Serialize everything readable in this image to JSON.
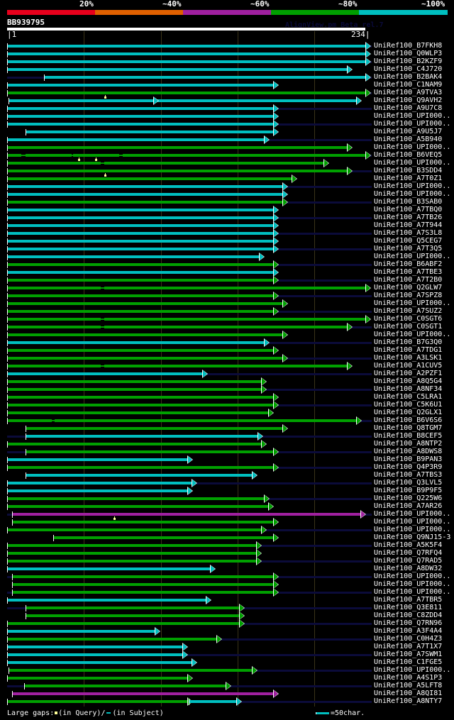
{
  "legend": {
    "labels": [
      "20%",
      "~40%",
      "~60%",
      "~80%",
      "~100%"
    ],
    "colors": [
      "#e8001c",
      "#e06000",
      "#a020a0",
      "#00a000",
      "#00bfc0"
    ]
  },
  "query": {
    "name": "BB939795",
    "start": 1,
    "end": 234,
    "watermark": "AlignView.pm Beta rel.7"
  },
  "colors": {
    "cyan": "#00bfc0",
    "green": "#00a000",
    "magenta": "#a020a0",
    "tail": "#0b0b3a",
    "background": "#000000",
    "grid": "#3a3318"
  },
  "grid_positions": [
    1,
    51,
    101,
    151,
    201,
    234
  ],
  "rows": [
    {
      "label": "UniRef100_B7FKH8",
      "color": "cyan",
      "start": 1,
      "end": 234,
      "tail": true
    },
    {
      "label": "UniRef100_Q0WLP3",
      "color": "cyan",
      "start": 1,
      "end": 234,
      "tail": false
    },
    {
      "label": "UniRef100_B2KZF9",
      "color": "cyan",
      "start": 1,
      "end": 234,
      "tail": true
    },
    {
      "label": "UniRef100_C4J720",
      "color": "cyan",
      "start": 1,
      "end": 222,
      "tail": false
    },
    {
      "label": "UniRef100_B2BAK4",
      "color": "cyan",
      "start": 25,
      "end": 234,
      "tail": true,
      "pre_tail": true
    },
    {
      "label": "UniRef100_C1NAM9",
      "color": "cyan",
      "start": 1,
      "end": 174,
      "tail": false
    },
    {
      "label": "UniRef100_A9TVA3",
      "color": "green",
      "start": 1,
      "end": 234,
      "tail": true,
      "qgaps": [
        64
      ]
    },
    {
      "label": "UniRef100_Q9AVH2",
      "color": "cyan",
      "start": 2,
      "end": 228,
      "tail": false,
      "mid_mark": 96
    },
    {
      "label": "UniRef100_A9U7C8",
      "color": "cyan",
      "start": 1,
      "end": 174,
      "tail": true
    },
    {
      "label": "UniRef100_UPI000..",
      "color": "cyan",
      "start": 1,
      "end": 174,
      "tail": false
    },
    {
      "label": "UniRef100_UPI000..",
      "color": "cyan",
      "start": 1,
      "end": 174,
      "tail": true
    },
    {
      "label": "UniRef100_A9U5J7",
      "color": "cyan",
      "start": 13,
      "end": 174,
      "tail": false
    },
    {
      "label": "UniRef100_A5B940",
      "color": "cyan",
      "start": 1,
      "end": 168,
      "tail": true
    },
    {
      "label": "UniRef100_UPI000..",
      "color": "green",
      "start": 1,
      "end": 222,
      "tail": false
    },
    {
      "label": "UniRef100_B6VEQ5",
      "color": "green",
      "start": 1,
      "end": 234,
      "tail": true,
      "sgaps": [
        [
          10,
          13
        ],
        [
          43,
          44
        ],
        [
          74,
          76
        ]
      ],
      "qgaps": [
        47,
        58
      ]
    },
    {
      "label": "UniRef100_UPI000..",
      "color": "green",
      "start": 1,
      "end": 207,
      "tail": false,
      "sgaps": [
        [
          62,
          64
        ]
      ]
    },
    {
      "label": "UniRef100_B3SDD4",
      "color": "green",
      "start": 1,
      "end": 222,
      "tail": true,
      "qgaps": [
        64
      ]
    },
    {
      "label": "UniRef100_A7T0Z1",
      "color": "green",
      "start": 1,
      "end": 186,
      "tail": false
    },
    {
      "label": "UniRef100_UPI000..",
      "color": "cyan",
      "start": 1,
      "end": 180,
      "tail": true
    },
    {
      "label": "UniRef100_UPI000..",
      "color": "cyan",
      "start": 1,
      "end": 180,
      "tail": false
    },
    {
      "label": "UniRef100_B3SAB0",
      "color": "green",
      "start": 1,
      "end": 180,
      "tail": true
    },
    {
      "label": "UniRef100_A7TBQ0",
      "color": "cyan",
      "start": 1,
      "end": 174,
      "tail": false
    },
    {
      "label": "UniRef100_A7TB26",
      "color": "cyan",
      "start": 1,
      "end": 174,
      "tail": true
    },
    {
      "label": "UniRef100_A7T944",
      "color": "cyan",
      "start": 1,
      "end": 174,
      "tail": false
    },
    {
      "label": "UniRef100_A7S3L8",
      "color": "cyan",
      "start": 1,
      "end": 174,
      "tail": true
    },
    {
      "label": "UniRef100_Q5CEG7",
      "color": "cyan",
      "start": 1,
      "end": 174,
      "tail": false
    },
    {
      "label": "UniRef100_A7T3Q5",
      "color": "cyan",
      "start": 1,
      "end": 174,
      "tail": true
    },
    {
      "label": "UniRef100_UPI000..",
      "color": "cyan",
      "start": 1,
      "end": 165,
      "tail": false
    },
    {
      "label": "UniRef100_B6ABF2",
      "color": "green",
      "start": 1,
      "end": 174,
      "tail": true
    },
    {
      "label": "UniRef100_A7TBE3",
      "color": "cyan",
      "start": 1,
      "end": 174,
      "tail": false
    },
    {
      "label": "UniRef100_A7T2B0",
      "color": "green",
      "start": 1,
      "end": 174,
      "tail": true
    },
    {
      "label": "UniRef100_Q2GLW7",
      "color": "green",
      "start": 1,
      "end": 234,
      "tail": false,
      "sgaps": [
        [
          62,
          64
        ]
      ]
    },
    {
      "label": "UniRef100_A7SPZ8",
      "color": "green",
      "start": 1,
      "end": 174,
      "tail": true
    },
    {
      "label": "UniRef100_UPI000..",
      "color": "green",
      "start": 1,
      "end": 180,
      "tail": false
    },
    {
      "label": "UniRef100_A7SUZ2",
      "color": "green",
      "start": 1,
      "end": 174,
      "tail": true
    },
    {
      "label": "UniRef100_C0SGT6",
      "color": "green",
      "start": 1,
      "end": 234,
      "tail": false,
      "sgaps": [
        [
          62,
          64
        ]
      ]
    },
    {
      "label": "UniRef100_C0SGT1",
      "color": "green",
      "start": 1,
      "end": 222,
      "tail": true,
      "sgaps": [
        [
          62,
          64
        ]
      ]
    },
    {
      "label": "UniRef100_UPI000..",
      "color": "green",
      "start": 1,
      "end": 180,
      "tail": false
    },
    {
      "label": "UniRef100_B7G3Q0",
      "color": "cyan",
      "start": 1,
      "end": 168,
      "tail": true
    },
    {
      "label": "UniRef100_A7TDG1",
      "color": "green",
      "start": 1,
      "end": 174,
      "tail": false
    },
    {
      "label": "UniRef100_A3LSK1",
      "color": "green",
      "start": 1,
      "end": 180,
      "tail": true
    },
    {
      "label": "UniRef100_A1CUV5",
      "color": "green",
      "start": 1,
      "end": 222,
      "tail": false,
      "sgaps": [
        [
          62,
          64
        ]
      ]
    },
    {
      "label": "UniRef100_A2PZF1",
      "color": "cyan",
      "start": 1,
      "end": 128,
      "tail": true
    },
    {
      "label": "UniRef100_A8Q5G4",
      "color": "green",
      "start": 1,
      "end": 166,
      "tail": false
    },
    {
      "label": "UniRef100_A8NF34",
      "color": "green",
      "start": 1,
      "end": 166,
      "tail": true
    },
    {
      "label": "UniRef100_C5LRA1",
      "color": "green",
      "start": 1,
      "end": 174,
      "tail": false
    },
    {
      "label": "UniRef100_C5K6U1",
      "color": "green",
      "start": 1,
      "end": 174,
      "tail": true
    },
    {
      "label": "UniRef100_Q2GLX1",
      "color": "green",
      "start": 1,
      "end": 171,
      "tail": false
    },
    {
      "label": "UniRef100_B6V6S6",
      "color": "green",
      "start": 1,
      "end": 228,
      "tail": true,
      "sgaps": [
        [
          30,
          32
        ]
      ]
    },
    {
      "label": "UniRef100_Q8TGM7",
      "color": "green",
      "start": 13,
      "end": 180,
      "tail": false
    },
    {
      "label": "UniRef100_B8CEF5",
      "color": "cyan",
      "start": 13,
      "end": 164,
      "tail": true,
      "pre_tail": true
    },
    {
      "label": "UniRef100_A8NTP2",
      "color": "green",
      "start": 1,
      "end": 166,
      "tail": false
    },
    {
      "label": "UniRef100_A8DWS8",
      "color": "green",
      "start": 13,
      "end": 174,
      "tail": true,
      "pre_tail": true
    },
    {
      "label": "UniRef100_B9PAN3",
      "color": "cyan",
      "start": 1,
      "end": 118,
      "tail": false
    },
    {
      "label": "UniRef100_Q4P3R9",
      "color": "green",
      "start": 1,
      "end": 174,
      "tail": true
    },
    {
      "label": "UniRef100_A7TBS3",
      "color": "cyan",
      "start": 13,
      "end": 160,
      "tail": false
    },
    {
      "label": "UniRef100_Q3LVL5",
      "color": "cyan",
      "start": 1,
      "end": 121,
      "tail": true
    },
    {
      "label": "UniRef100_B9P9F5",
      "color": "cyan",
      "start": 1,
      "end": 118,
      "tail": false
    },
    {
      "label": "UniRef100_Q225W6",
      "color": "green",
      "start": 1,
      "end": 168,
      "tail": true
    },
    {
      "label": "UniRef100_A7AR26",
      "color": "green",
      "start": 1,
      "end": 171,
      "tail": false
    },
    {
      "label": "UniRef100_UPI000..",
      "color": "magenta",
      "start": 4,
      "end": 231,
      "tail": true,
      "pre_tail": true,
      "qgaps": [
        70
      ]
    },
    {
      "label": "UniRef100_UPI000..",
      "color": "green",
      "start": 4,
      "end": 174,
      "tail": false
    },
    {
      "label": "UniRef100_UPI000..",
      "color": "green",
      "start": 1,
      "end": 166,
      "tail": true
    },
    {
      "label": "UniRef100_Q9NJ15-3",
      "color": "green",
      "start": 31,
      "end": 174,
      "tail": false
    },
    {
      "label": "UniRef100_A5K5F4",
      "color": "green",
      "start": 1,
      "end": 163,
      "tail": true
    },
    {
      "label": "UniRef100_Q7RFQ4",
      "color": "green",
      "start": 1,
      "end": 163,
      "tail": false
    },
    {
      "label": "UniRef100_Q7RAD5",
      "color": "green",
      "start": 1,
      "end": 163,
      "tail": true
    },
    {
      "label": "UniRef100_A8DW32",
      "color": "cyan",
      "start": 1,
      "end": 133,
      "tail": false
    },
    {
      "label": "UniRef100_UPI000..",
      "color": "green",
      "start": 4,
      "end": 174,
      "tail": true,
      "pre_tail": true
    },
    {
      "label": "UniRef100_UPI000..",
      "color": "green",
      "start": 4,
      "end": 174,
      "tail": false
    },
    {
      "label": "UniRef100_UPI000..",
      "color": "green",
      "start": 4,
      "end": 174,
      "tail": true,
      "pre_tail": true
    },
    {
      "label": "UniRef100_A7TBR5",
      "color": "cyan",
      "start": 1,
      "end": 130,
      "tail": false
    },
    {
      "label": "UniRef100_Q3E811",
      "color": "green",
      "start": 13,
      "end": 152,
      "tail": true,
      "pre_tail": true
    },
    {
      "label": "UniRef100_C8ZDD4",
      "color": "green",
      "start": 13,
      "end": 152,
      "tail": false
    },
    {
      "label": "UniRef100_Q7RN96",
      "color": "green",
      "start": 1,
      "end": 152,
      "tail": true
    },
    {
      "label": "UniRef100_A3F4A4",
      "color": "cyan",
      "start": 1,
      "end": 97,
      "tail": false
    },
    {
      "label": "UniRef100_C0H4Z3",
      "color": "green",
      "start": 1,
      "end": 137,
      "tail": true
    },
    {
      "label": "UniRef100_A7T1X7",
      "color": "cyan",
      "start": 1,
      "end": 115,
      "tail": false
    },
    {
      "label": "UniRef100_A7SWM1",
      "color": "cyan",
      "start": 1,
      "end": 115,
      "tail": true
    },
    {
      "label": "UniRef100_C1FGE5",
      "color": "cyan",
      "start": 1,
      "end": 121,
      "tail": false
    },
    {
      "label": "UniRef100_UPI000..",
      "color": "green",
      "start": 2,
      "end": 160,
      "tail": true
    },
    {
      "label": "UniRef100_A4S1P3",
      "color": "green",
      "start": 1,
      "end": 118,
      "tail": false
    },
    {
      "label": "UniRef100_A5LFT8",
      "color": "green",
      "start": 12,
      "end": 143,
      "tail": true,
      "pre_tail": true
    },
    {
      "label": "UniRef100_A8QI81",
      "color": "magenta",
      "start": 4,
      "end": 174,
      "tail": false
    },
    {
      "label": "UniRef100_A8NTY7",
      "color": "green",
      "start": 1,
      "end": 118,
      "tail": true,
      "second": {
        "color": "cyan",
        "start": 119,
        "end": 150
      }
    }
  ],
  "footer": {
    "gaps_label": "Large gaps:",
    "query_gap_label": "(in Query)/",
    "subject_gap_label": "(in Subject)",
    "scale_label": "=50char."
  }
}
